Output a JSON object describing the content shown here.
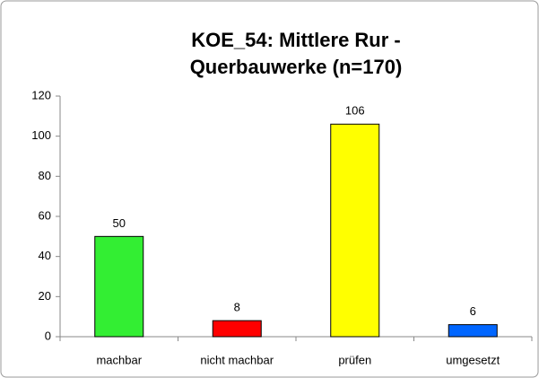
{
  "chart_data": {
    "type": "bar",
    "title": [
      "KOE_54: Mittlere Rur -",
      "Querbauwerke (n=170)"
    ],
    "categories": [
      "machbar",
      "nicht machbar",
      "prüfen",
      "umgesetzt"
    ],
    "values": [
      50,
      8,
      106,
      6
    ],
    "colors": [
      "#33ee33",
      "#ff0000",
      "#ffff00",
      "#0066ff"
    ],
    "ylim": [
      0,
      120
    ],
    "yticks": [
      0,
      20,
      40,
      60,
      80,
      100,
      120
    ],
    "grid": false,
    "data_labels": true
  }
}
